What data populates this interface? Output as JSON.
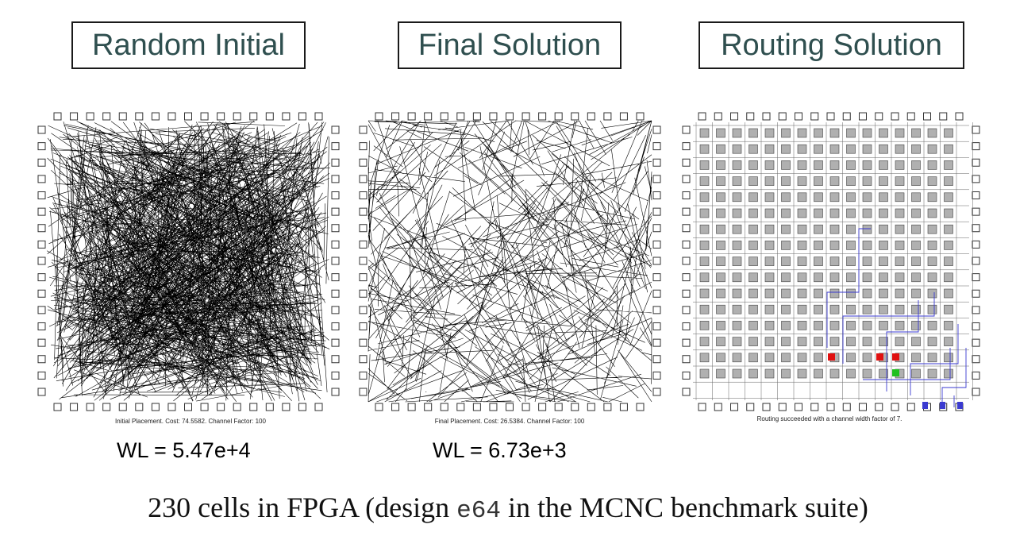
{
  "panels": [
    {
      "title": "Random Initial",
      "caption": "Initial Placement.  Cost: 74.5582.  Channel Factor: 100",
      "wl": "WL = 5.47e+4"
    },
    {
      "title": "Final Solution",
      "caption": "Final Placement.  Cost: 26.5384.  Channel Factor: 100",
      "wl": "WL = 6.73e+3"
    },
    {
      "title": "Routing Solution",
      "caption": "Routing succeeded with a channel width factor of 7.",
      "wl": ""
    }
  ],
  "footer": {
    "prefix": "230 cells in FPGA (design ",
    "design": "e64",
    "suffix": " in the MCNC benchmark suite)"
  },
  "colors": {
    "border": "#1a1a1a",
    "title_text": "#2f4f4f",
    "cell_fill": "#b0b0b0",
    "route_blue": "#3a3ad0",
    "highlight_red": "#e01010",
    "highlight_green": "#20c020"
  }
}
